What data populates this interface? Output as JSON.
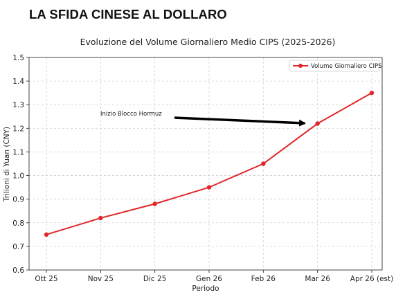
{
  "headline": "LA SFIDA CINESE AL DOLLARO",
  "chart_data": {
    "type": "line",
    "title": "Evoluzione del Volume Giornaliero Medio CIPS (2025-2026)",
    "xlabel": "Periodo",
    "ylabel": "Trilioni di Yuan (CNY)",
    "categories": [
      "Ott 25",
      "Nov 25",
      "Dic 25",
      "Gen 26",
      "Feb 26",
      "Mar 26",
      "Apr 26 (est)"
    ],
    "series": [
      {
        "name": "Volume Giornaliero CIPS",
        "values": [
          0.75,
          0.82,
          0.88,
          0.95,
          1.05,
          1.22,
          1.35
        ],
        "color": "#e0262a"
      }
    ],
    "ylim": [
      0.6,
      1.5
    ],
    "yticks": [
      "0.6",
      "0.7",
      "0.8",
      "0.9",
      "1.0",
      "1.1",
      "1.2",
      "1.3",
      "1.4",
      "1.5"
    ],
    "grid": true,
    "legend": "top-right",
    "annotation": {
      "text": "Inizio Blocco Hormuz",
      "points_to": "Mar 26"
    }
  }
}
